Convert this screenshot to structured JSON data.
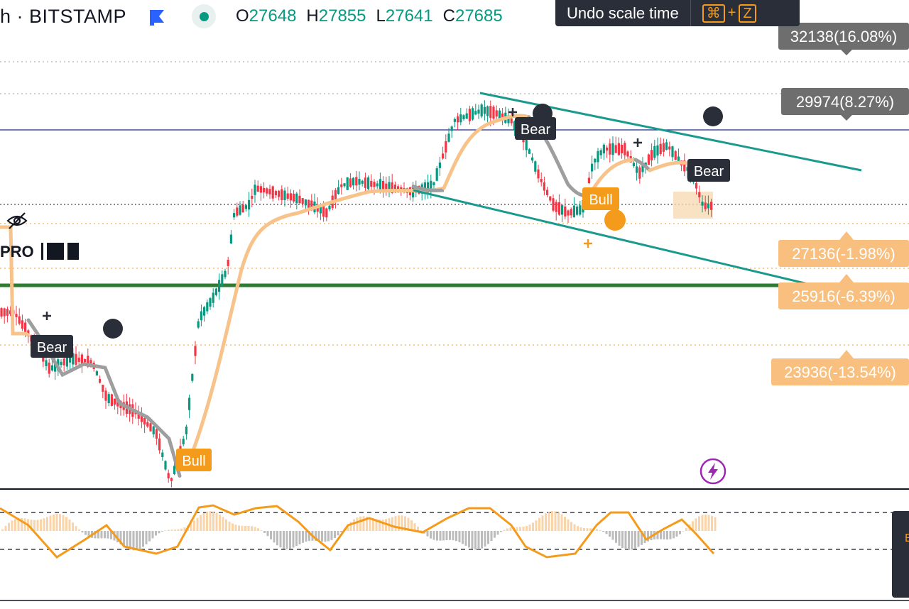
{
  "header": {
    "symbol": "h · BITSTAMP",
    "ohlc": [
      {
        "key": "O",
        "value": "27648"
      },
      {
        "key": "H",
        "value": "27855"
      },
      {
        "key": "L",
        "value": "27641"
      },
      {
        "key": "C",
        "value": "27685"
      }
    ]
  },
  "toolbar": {
    "undo_label": "Undo scale time",
    "shortcut_modifier": "⌘",
    "shortcut_plus": "+",
    "shortcut_key": "Z"
  },
  "indicator_panel": {
    "pro_label": "PRO"
  },
  "price_labels": [
    {
      "text": "32138(16.08%)",
      "style": "gray"
    },
    {
      "text": "29974(8.27%)",
      "style": "gray"
    },
    {
      "text": "27136(-1.98%)",
      "style": "orange"
    },
    {
      "text": "25916(-6.39%)",
      "style": "orange"
    },
    {
      "text": "23936(-13.54%)",
      "style": "orange"
    }
  ],
  "signal_labels": [
    {
      "text": "Bear"
    },
    {
      "text": "Bull"
    },
    {
      "text": "Bear"
    },
    {
      "text": "Bull"
    },
    {
      "text": "Bear"
    }
  ],
  "colors": {
    "up": "#089981",
    "down": "#f23645",
    "accent": "#f59b1c",
    "channel": "#1a9a8e",
    "support": "#2e7d32",
    "resistance": "#1e2a8a",
    "ma_bull": "#f7c38a",
    "ma_bear": "#9e9e9e",
    "badge": "#2a2e39"
  },
  "icons": [
    "flag-icon",
    "eye-off-icon",
    "lightning-icon",
    "plus-icon"
  ]
}
